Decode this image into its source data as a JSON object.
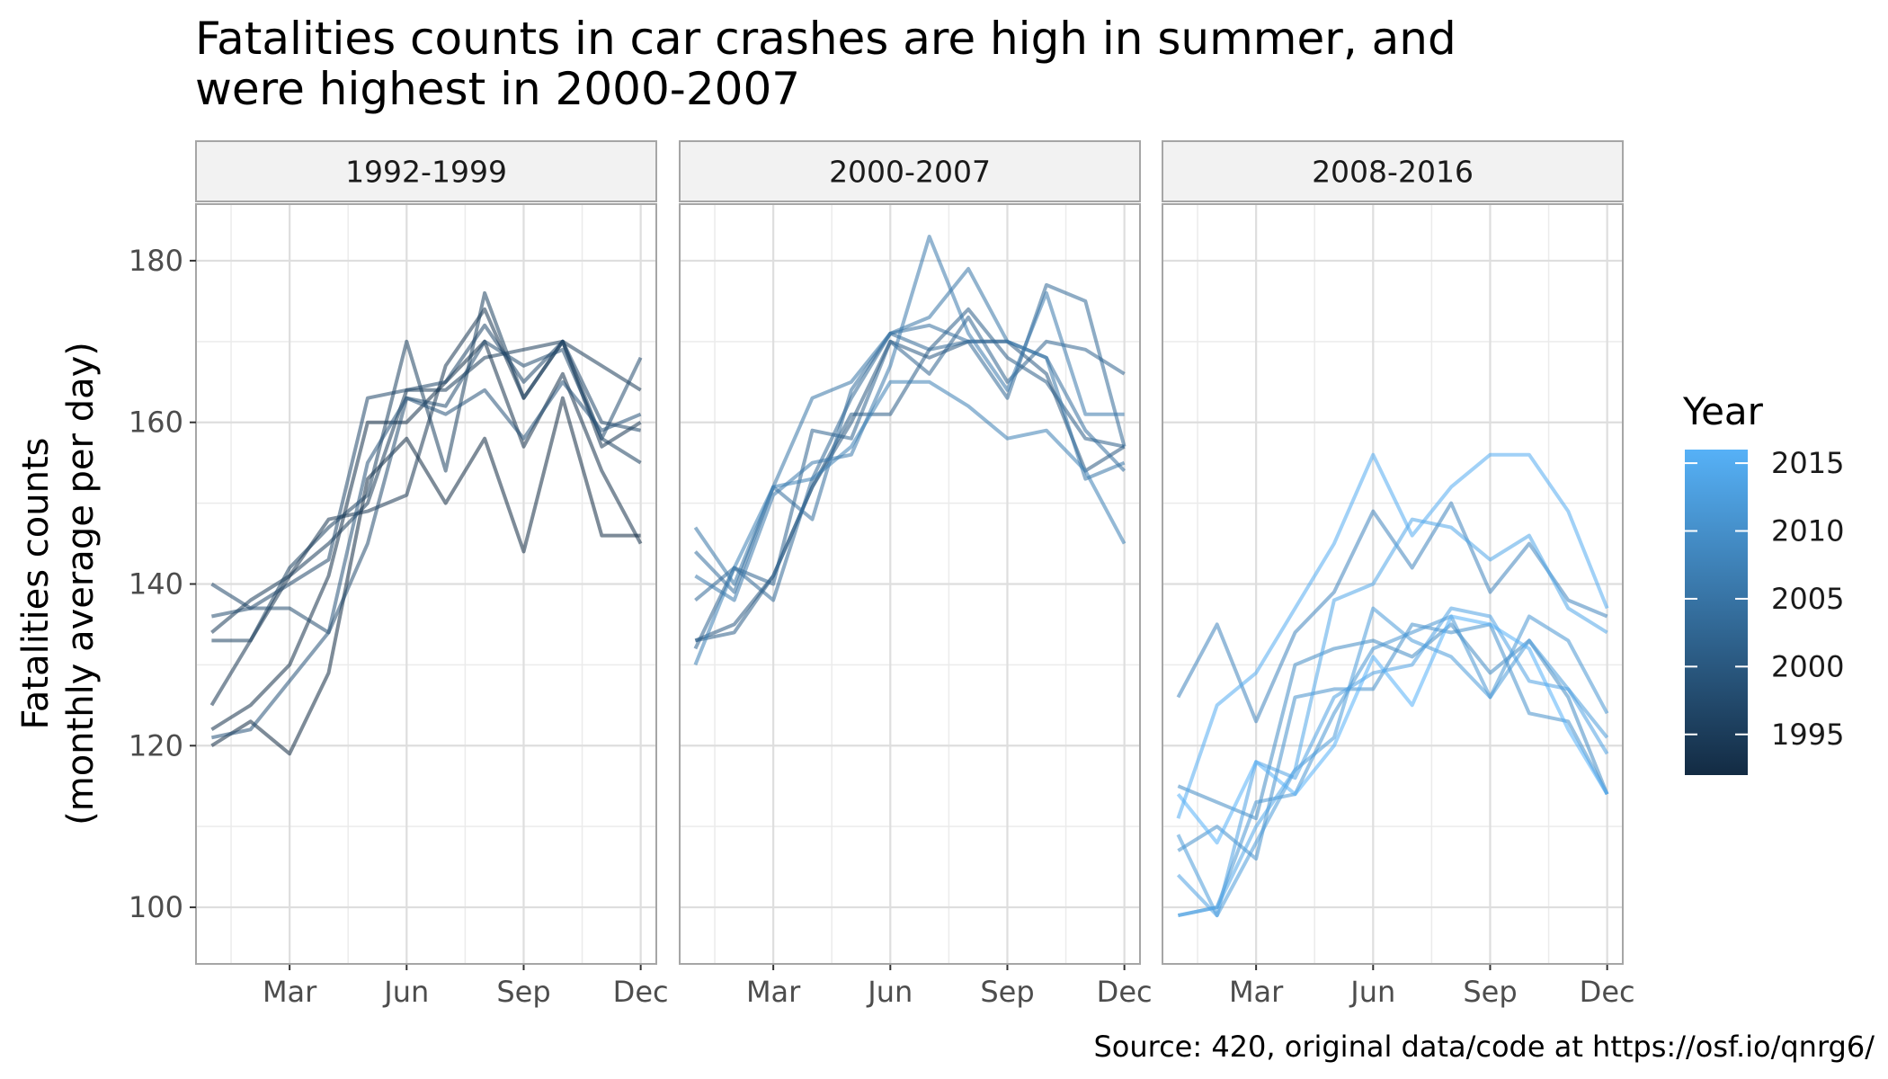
{
  "chart_data": {
    "type": "line",
    "title_lines": [
      "Fatalities counts in car crashes are high in summer, and",
      "were highest in 2000-2007"
    ],
    "xlabel": "",
    "ylabel_lines": [
      "Fatalities counts",
      "(monthly average per day)"
    ],
    "ylim": [
      93,
      187
    ],
    "y_ticks": [
      100,
      120,
      140,
      160,
      180
    ],
    "xlim": [
      0.6,
      12.4
    ],
    "x_ticks": [
      {
        "month": 3,
        "label": "Mar"
      },
      {
        "month": 6,
        "label": "Jun"
      },
      {
        "month": 9,
        "label": "Sep"
      },
      {
        "month": 12,
        "label": "Dec"
      }
    ],
    "grid": true,
    "legend": {
      "title": "Year",
      "position": "right",
      "type": "colorbar",
      "range": [
        1992,
        2016
      ],
      "ticks": [
        1995,
        2000,
        2005,
        2010,
        2015
      ],
      "color_low": "#132B43",
      "color_high": "#56B1F7"
    },
    "caption": "Source: 420, original data/code at https://osf.io/qnrg6/",
    "panels": [
      {
        "label": "1992-1999",
        "series": [
          {
            "year": 1992,
            "values": [
              120,
              123,
              119,
              129,
              153,
              158,
              150,
              158,
              144,
              163,
              146,
              146
            ]
          },
          {
            "year": 1993,
            "values": [
              122,
              125,
              130,
              141,
              160,
              160,
              165,
              170,
              157,
              166,
              154,
              145
            ]
          },
          {
            "year": 1994,
            "values": [
              125,
              133,
              141,
              148,
              149,
              151,
              167,
              174,
              163,
              170,
              157,
              160
            ]
          },
          {
            "year": 1995,
            "values": [
              134,
              138,
              141,
              145,
              150,
              164,
              164,
              168,
              169,
              170,
              167,
              164
            ]
          },
          {
            "year": 1996,
            "values": [
              133,
              133,
              142,
              147,
              151,
              170,
              154,
              176,
              163,
              170,
              158,
              155
            ]
          },
          {
            "year": 1997,
            "values": [
              140,
              137,
              140,
              143,
              163,
              164,
              165,
              172,
              165,
              170,
              160,
              159
            ]
          },
          {
            "year": 1998,
            "values": [
              136,
              137,
              137,
              134,
              145,
              163,
              162,
              170,
              167,
              169,
              158,
              168
            ]
          },
          {
            "year": 1999,
            "values": [
              121,
              122,
              128,
              134,
              155,
              163,
              161,
              164,
              158,
              165,
              159,
              161
            ]
          }
        ]
      },
      {
        "label": "2000-2007",
        "series": [
          {
            "year": 2000,
            "values": [
              133,
              135,
              141,
              152,
              160,
              170,
              168,
              170,
              170,
              166,
              154,
              157
            ]
          },
          {
            "year": 2001,
            "values": [
              133,
              134,
              141,
              152,
              161,
              161,
              169,
              174,
              168,
              165,
              158,
              157
            ]
          },
          {
            "year": 2002,
            "values": [
              132,
              142,
              140,
              159,
              158,
              170,
              166,
              173,
              165,
              170,
              169,
              166
            ]
          },
          {
            "year": 2003,
            "values": [
              138,
              142,
              138,
              153,
              163,
              171,
              169,
              170,
              163,
              177,
              175,
              157
            ]
          },
          {
            "year": 2004,
            "values": [
              144,
              139,
              152,
              148,
              164,
              171,
              172,
              170,
              170,
              168,
              159,
              154
            ]
          },
          {
            "year": 2005,
            "values": [
              147,
              140,
              152,
              163,
              165,
              171,
              173,
              179,
              170,
              168,
              153,
              155
            ]
          },
          {
            "year": 2006,
            "values": [
              141,
              138,
              151,
              155,
              156,
              167,
              183,
              171,
              164,
              176,
              161,
              161
            ]
          },
          {
            "year": 2007,
            "values": [
              130,
              142,
              152,
              153,
              157,
              165,
              165,
              162,
              158,
              159,
              154,
              145
            ]
          }
        ]
      },
      {
        "label": "2008-2016",
        "series": [
          {
            "year": 2008,
            "values": [
              126,
              135,
              123,
              134,
              139,
              149,
              142,
              150,
              139,
              145,
              138,
              136
            ]
          },
          {
            "year": 2009,
            "values": [
              115,
              113,
              111,
              130,
              132,
              133,
              131,
              135,
              129,
              133,
              126,
              114
            ]
          },
          {
            "year": 2010,
            "values": [
              107,
              110,
              106,
              126,
              127,
              127,
              135,
              134,
              135,
              124,
              123,
              114
            ]
          },
          {
            "year": 2011,
            "values": [
              99,
              100,
              113,
              114,
              124,
              132,
              134,
              136,
              126,
              136,
              133,
              124
            ]
          },
          {
            "year": 2012,
            "values": [
              109,
              99,
              108,
              117,
              121,
              137,
              133,
              131,
              126,
              133,
              127,
              121
            ]
          },
          {
            "year": 2013,
            "values": [
              104,
              99,
              118,
              116,
              126,
              129,
              130,
              137,
              136,
              128,
              127,
              119
            ]
          },
          {
            "year": 2014,
            "values": [
              99,
              100,
              110,
              117,
              138,
              140,
              148,
              147,
              143,
              146,
              137,
              134
            ]
          },
          {
            "year": 2015,
            "values": [
              111,
              125,
              129,
              137,
              145,
              156,
              146,
              152,
              156,
              156,
              149,
              137
            ]
          },
          {
            "year": 2016,
            "values": [
              114,
              108,
              118,
              114,
              120,
              131,
              125,
              136,
              135,
              132,
              122,
              114
            ]
          }
        ]
      }
    ]
  }
}
